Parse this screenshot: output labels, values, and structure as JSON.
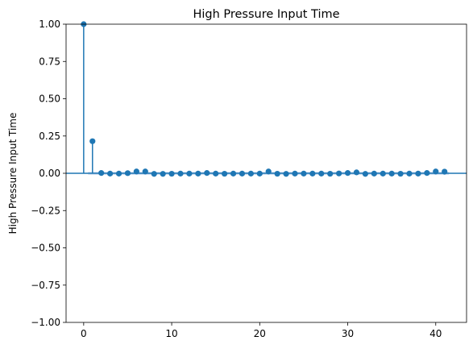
{
  "chart_data": {
    "type": "stem",
    "title": "High Pressure Input Time",
    "xlabel": "",
    "ylabel": "High Pressure Input Time",
    "xlim": [
      -2,
      43.5
    ],
    "ylim": [
      -1.0,
      1.0
    ],
    "x_ticks": [
      0,
      10,
      20,
      30,
      40
    ],
    "y_ticks": [
      -1.0,
      -0.75,
      -0.5,
      -0.25,
      0.0,
      0.25,
      0.5,
      0.75,
      1.0
    ],
    "y_tick_labels": [
      "−1.00",
      "−0.75",
      "−0.50",
      "−0.25",
      "0.00",
      "0.25",
      "0.50",
      "0.75",
      "1.00"
    ],
    "x_tick_labels": [
      "0",
      "10",
      "20",
      "30",
      "40"
    ],
    "grid": false,
    "colors": {
      "stem": "#1f77b4",
      "confidence_band": "#aec7e8"
    },
    "confidence_band": 0.01,
    "series": [
      {
        "x": [
          0,
          1,
          2,
          3,
          4,
          5,
          6,
          7,
          8,
          9,
          10,
          11,
          12,
          13,
          14,
          15,
          16,
          17,
          18,
          19,
          20,
          21,
          22,
          23,
          24,
          25,
          26,
          27,
          28,
          29,
          30,
          31,
          32,
          33,
          34,
          35,
          36,
          37,
          38,
          39,
          40,
          41
        ],
        "values": [
          1.0,
          0.215,
          0.002,
          -0.002,
          -0.002,
          0.001,
          0.012,
          0.012,
          -0.004,
          -0.004,
          -0.003,
          -0.002,
          -0.002,
          -0.002,
          0.002,
          -0.002,
          -0.003,
          -0.002,
          -0.002,
          -0.002,
          -0.002,
          0.012,
          -0.003,
          -0.004,
          -0.002,
          -0.002,
          -0.002,
          -0.002,
          -0.003,
          -0.001,
          0.002,
          0.006,
          -0.004,
          -0.002,
          -0.002,
          -0.002,
          -0.003,
          -0.002,
          -0.002,
          0.002,
          0.012,
          0.011
        ]
      }
    ]
  }
}
